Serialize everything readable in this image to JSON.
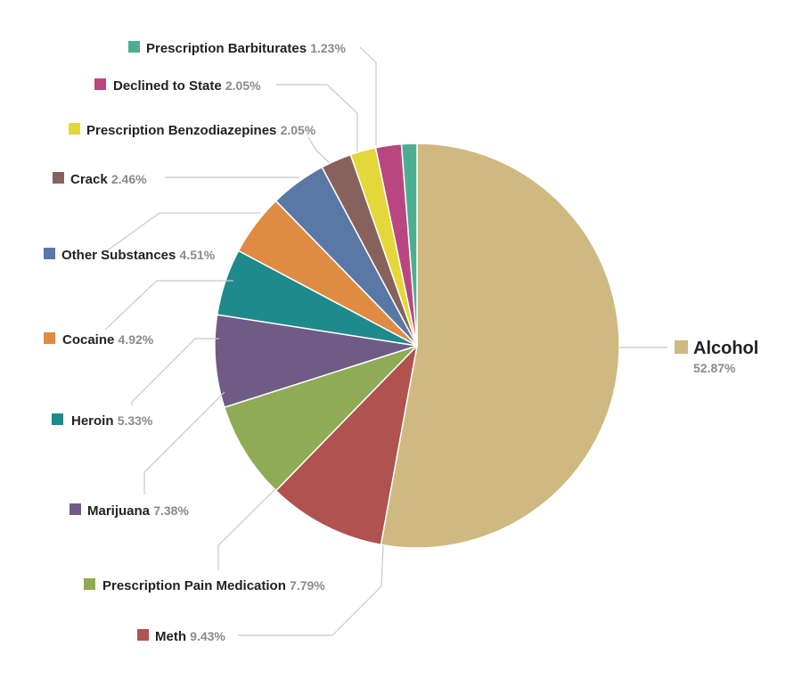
{
  "chart_data": {
    "type": "pie",
    "slices": [
      {
        "label": "Alcohol",
        "value": 52.87,
        "value_text": "52.87%",
        "color": "#cfb980"
      },
      {
        "label": "Meth",
        "value": 9.43,
        "value_text": "9.43%",
        "color": "#b0524e"
      },
      {
        "label": "Prescription Pain Medication",
        "value": 7.79,
        "value_text": "7.79%",
        "color": "#8fab55"
      },
      {
        "label": "Marijuana",
        "value": 7.38,
        "value_text": "7.38%",
        "color": "#6f5b86"
      },
      {
        "label": "Heroin",
        "value": 5.33,
        "value_text": "5.33%",
        "color": "#1e8a8c"
      },
      {
        "label": "Cocaine",
        "value": 4.92,
        "value_text": "4.92%",
        "color": "#e08b44"
      },
      {
        "label": "Other Substances",
        "value": 4.51,
        "value_text": "4.51%",
        "color": "#5a78a6"
      },
      {
        "label": "Crack",
        "value": 2.46,
        "value_text": "2.46%",
        "color": "#87625c"
      },
      {
        "label": "Prescription Benzodiazepines",
        "value": 2.05,
        "value_text": "2.05%",
        "color": "#e3d73a"
      },
      {
        "label": "Declined to State",
        "value": 2.05,
        "value_text": "2.05%",
        "color": "#b9467f"
      },
      {
        "label": "Prescription Barbiturates",
        "value": 1.23,
        "value_text": "1.23%",
        "color": "#4caf92"
      }
    ]
  }
}
